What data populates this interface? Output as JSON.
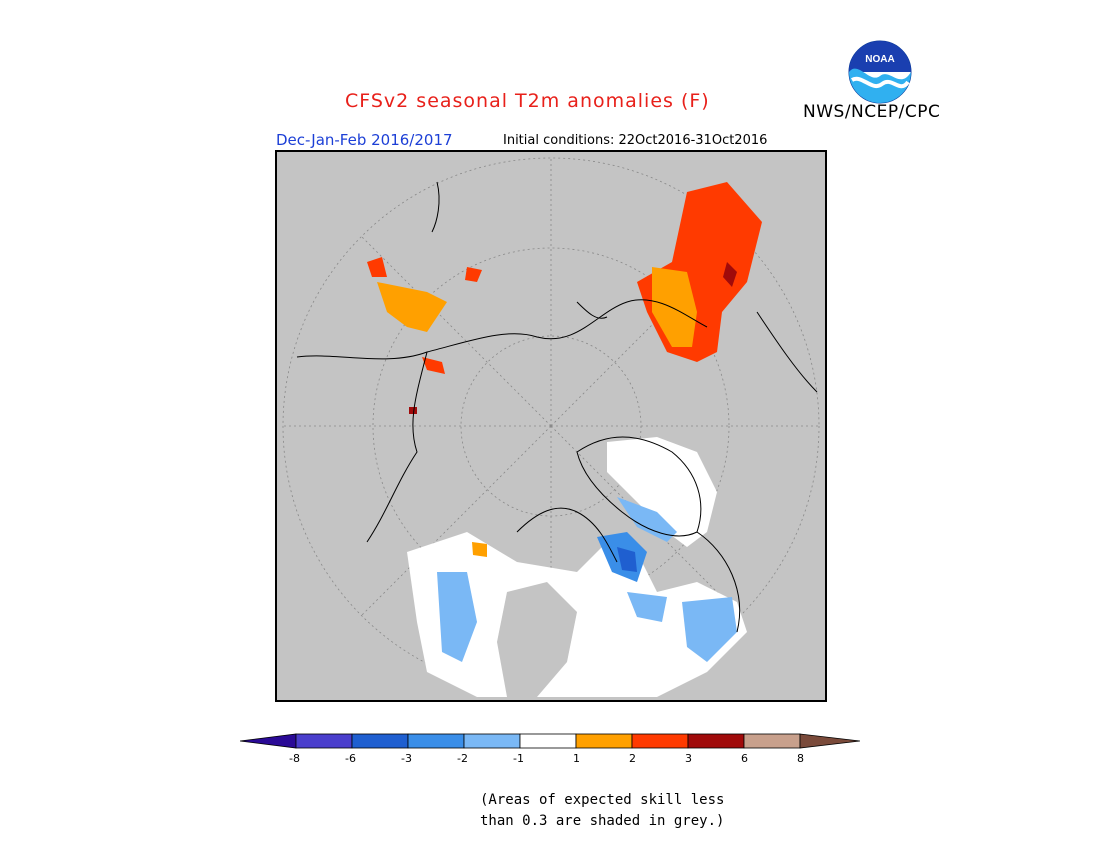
{
  "title": "CFSv2 seasonal T2m anomalies (F)",
  "agency": "NWS/NCEP/CPC",
  "logo_text": "NOAA",
  "season": "Dec-Jan-Feb 2016/2017",
  "initial_conditions": "Initial conditions: 22Oct2016-31Oct2016",
  "colorbar": {
    "colors": [
      "#2a0a96",
      "#4a3ecc",
      "#1f5fd0",
      "#3a8ee8",
      "#7ab8f5",
      "#ffffff",
      "#ffa000",
      "#ff3a00",
      "#a00a0a",
      "#c8a08c",
      "#7a4a3a"
    ],
    "labels": [
      "-8",
      "-6",
      "-3",
      "-2",
      "-1",
      "1",
      "2",
      "3",
      "6",
      "8"
    ]
  },
  "footnote_line1": "(Areas of expected skill less",
  "footnote_line2": "than 0.3 are shaded in grey.)"
}
